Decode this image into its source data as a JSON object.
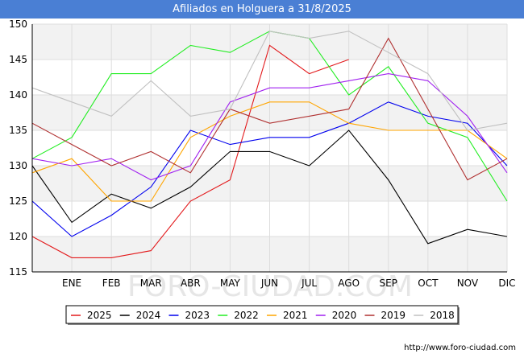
{
  "title": "Afiliados en Holguera a 31/8/2025",
  "source_url": "http://www.foro-ciudad.com",
  "watermark": "FORO-CIUDAD.COM",
  "chart_data": {
    "type": "line",
    "categories": [
      "",
      "ENE",
      "FEB",
      "MAR",
      "ABR",
      "MAY",
      "JUN",
      "JUL",
      "AGO",
      "SEP",
      "OCT",
      "NOV",
      "DIC"
    ],
    "ylim": [
      115,
      150
    ],
    "yticks": [
      115,
      120,
      125,
      130,
      135,
      140,
      145,
      150
    ],
    "grid": true,
    "legend_position": "bottom",
    "series": [
      {
        "name": "2025",
        "color": "#e31a1c",
        "values": [
          120,
          117,
          117,
          118,
          125,
          128,
          147,
          143,
          145,
          null,
          null,
          null,
          null
        ]
      },
      {
        "name": "2024",
        "color": "#000000",
        "values": [
          130,
          122,
          126,
          124,
          127,
          132,
          132,
          130,
          135,
          128,
          119,
          121,
          120
        ]
      },
      {
        "name": "2023",
        "color": "#0000ee",
        "values": [
          125,
          120,
          123,
          127,
          135,
          133,
          134,
          134,
          136,
          139,
          137,
          136,
          130
        ]
      },
      {
        "name": "2022",
        "color": "#22ee22",
        "values": [
          131,
          134,
          143,
          143,
          147,
          146,
          149,
          148,
          140,
          144,
          136,
          134,
          125
        ]
      },
      {
        "name": "2021",
        "color": "#ffa500",
        "values": [
          129,
          131,
          125,
          125,
          134,
          137,
          139,
          139,
          136,
          135,
          135,
          135,
          131
        ]
      },
      {
        "name": "2020",
        "color": "#a020f0",
        "values": [
          131,
          130,
          131,
          128,
          130,
          139,
          141,
          141,
          142,
          143,
          142,
          137,
          129
        ]
      },
      {
        "name": "2019",
        "color": "#b03030",
        "values": [
          136,
          133,
          130,
          132,
          129,
          138,
          136,
          137,
          138,
          148,
          138,
          128,
          131
        ]
      },
      {
        "name": "2018",
        "color": "#c0c0c0",
        "values": [
          141,
          139,
          137,
          142,
          137,
          138,
          149,
          148,
          149,
          146,
          143,
          135,
          136
        ]
      }
    ]
  }
}
